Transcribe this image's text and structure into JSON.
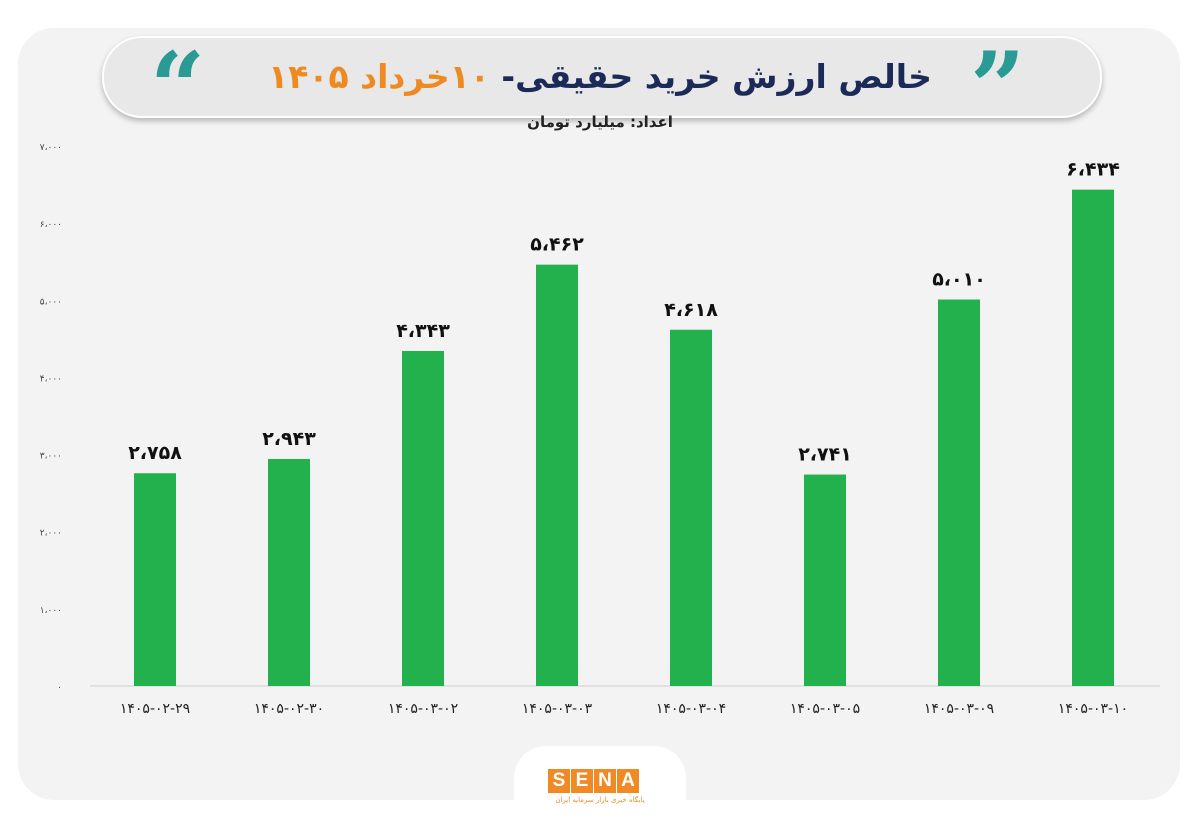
{
  "header": {
    "title_main": "خالص ارزش خرید حقیقی-",
    "title_date": "۱۰خرداد ۱۴۰۵",
    "quote_open": "“",
    "quote_close": "”",
    "subtitle": "اعداد: میلیارد تومان"
  },
  "colors": {
    "bar": "#22b14c",
    "accent_teal": "#2a9a95",
    "accent_orange": "#ee8a22",
    "title_navy": "#1b2a57"
  },
  "chart_data": {
    "type": "bar",
    "title": "خالص ارزش خرید حقیقی- ۱۰خرداد ۱۴۰۵",
    "subtitle": "اعداد: میلیارد تومان",
    "categories": [
      "۱۴۰۵-۰۲-۲۹",
      "۱۴۰۵-۰۲-۳۰",
      "۱۴۰۵-۰۳-۰۲",
      "۱۴۰۵-۰۳-۰۳",
      "۱۴۰۵-۰۳-۰۴",
      "۱۴۰۵-۰۳-۰۵",
      "۱۴۰۵-۰۳-۰۹",
      "۱۴۰۵-۰۳-۱۰"
    ],
    "values": [
      2758,
      2943,
      4343,
      5462,
      4618,
      2741,
      5010,
      6434
    ],
    "value_labels": [
      "۲،۷۵۸",
      "۲،۹۴۳",
      "۴،۳۴۳",
      "۵،۴۶۲",
      "۴،۶۱۸",
      "۲،۷۴۱",
      "۵،۰۱۰",
      "۶،۴۳۴"
    ],
    "yticks": [
      0,
      1000,
      2000,
      3000,
      4000,
      5000,
      6000,
      7000
    ],
    "ytick_labels": [
      "۰",
      "۱،۰۰۰",
      "۲،۰۰۰",
      "۳،۰۰۰",
      "۴،۰۰۰",
      "۵،۰۰۰",
      "۶،۰۰۰",
      "۷،۰۰۰"
    ],
    "ylim": [
      0,
      7000
    ],
    "xlabel": "",
    "ylabel": "",
    "grid": false,
    "legend": "none"
  },
  "footer": {
    "logo_letters": [
      "S",
      "E",
      "N",
      "A"
    ],
    "logo_tagline": "پایگاه خبری بازار سرمایه ایران"
  }
}
